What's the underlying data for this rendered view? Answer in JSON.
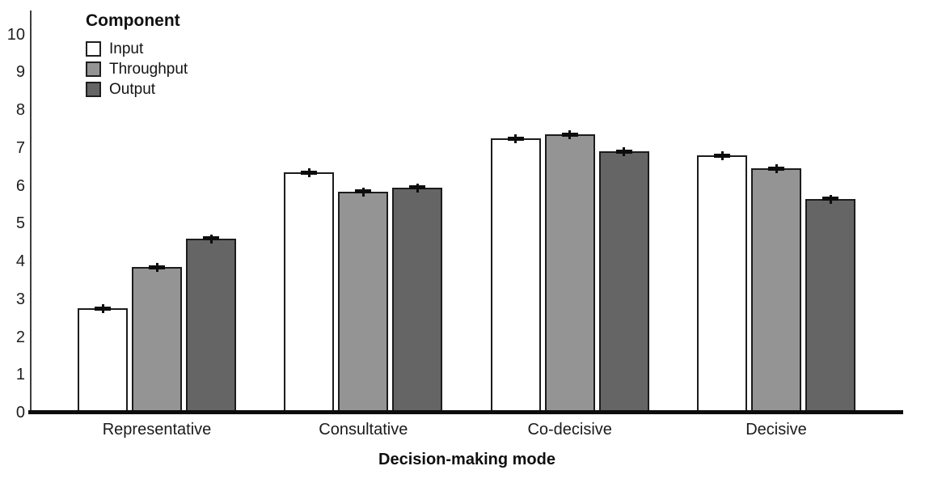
{
  "figure": {
    "background": "#ffffff",
    "axis_color": "#0d0d0d"
  },
  "chart_data": {
    "type": "bar",
    "title": "",
    "xlabel": "Decision-making mode",
    "ylabel": "",
    "ylim": [
      0,
      10
    ],
    "y_ticks": [
      0,
      1,
      2,
      3,
      4,
      5,
      6,
      7,
      8,
      9,
      10
    ],
    "grid": false,
    "legend_title": "Component",
    "legend_position": "upper-left",
    "error_bars": true,
    "categories": [
      "Representative",
      "Consultative",
      "Co-decisive",
      "Decisive"
    ],
    "series": [
      {
        "name": "Input",
        "color": "#ffffff",
        "values": [
          2.75,
          6.35,
          7.25,
          6.8
        ],
        "errors": [
          0.05,
          0.05,
          0.05,
          0.05
        ]
      },
      {
        "name": "Throughput",
        "color": "#949494",
        "values": [
          3.85,
          5.85,
          7.35,
          6.45
        ],
        "errors": [
          0.05,
          0.05,
          0.05,
          0.05
        ]
      },
      {
        "name": "Output",
        "color": "#656565",
        "values": [
          4.6,
          5.95,
          6.9,
          5.65
        ],
        "errors": [
          0.05,
          0.05,
          0.05,
          0.05
        ]
      }
    ]
  }
}
